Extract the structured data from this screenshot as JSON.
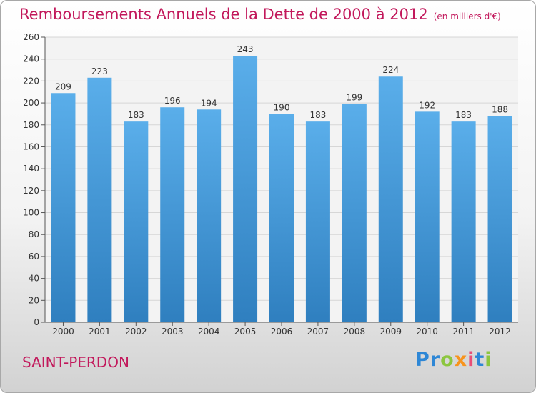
{
  "header": {
    "title": "Remboursements Annuels de la Dette de 2000 à 2012",
    "subtitle": "(en milliers d'€)"
  },
  "footer": {
    "place": "SAINT-PERDON",
    "logo": [
      "P",
      "r",
      "o",
      "x",
      "i",
      "t",
      "i"
    ],
    "logo_colors": [
      "#2e87d6",
      "#2e87d6",
      "#8cc63f",
      "#f7941d",
      "#e94e77",
      "#2e87d6",
      "#8cc63f"
    ]
  },
  "colors": {
    "bar_top": "#5aaeea",
    "bar_bottom": "#2f7fbf",
    "grid": "#d6d6d6",
    "axis": "#555555",
    "title": "#c2185b"
  },
  "chart_data": {
    "type": "bar",
    "title": "Remboursements Annuels de la Dette de 2000 à 2012",
    "subtitle": "(en milliers d'€)",
    "categories": [
      "2000",
      "2001",
      "2002",
      "2003",
      "2004",
      "2005",
      "2006",
      "2007",
      "2008",
      "2009",
      "2010",
      "2011",
      "2012"
    ],
    "values": [
      209,
      223,
      183,
      196,
      194,
      243,
      190,
      183,
      199,
      224,
      192,
      183,
      188
    ],
    "ylim": [
      0,
      260
    ],
    "yticks": [
      0,
      20,
      40,
      60,
      80,
      100,
      120,
      140,
      160,
      180,
      200,
      220,
      240,
      260
    ],
    "grid": true
  }
}
